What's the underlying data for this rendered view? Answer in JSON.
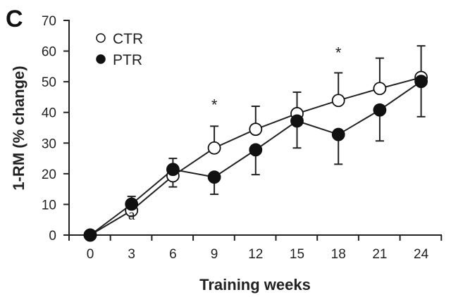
{
  "panel_label": "C",
  "chart_data": {
    "type": "line",
    "xlabel": "Training weeks",
    "ylabel": "1-RM (% change)",
    "x": [
      0,
      3,
      6,
      9,
      12,
      15,
      18,
      21,
      24
    ],
    "x_tick_labels": [
      "0",
      "3",
      "6",
      "9",
      "12",
      "15",
      "18",
      "21",
      "24"
    ],
    "ylim": [
      0,
      70
    ],
    "y_tick_labels": [
      "0",
      "10",
      "20",
      "30",
      "40",
      "50",
      "60",
      "70"
    ],
    "grid": false,
    "legend_position": "top-left",
    "series": [
      {
        "name": "CTR",
        "marker": "open-circle",
        "color": "#ffffff",
        "values": [
          0,
          8,
          19.3,
          28.4,
          34.5,
          39.6,
          43.9,
          47.8,
          51.4
        ],
        "error_upper": [
          null,
          null,
          null,
          35.5,
          42,
          46.6,
          52.9,
          57.7,
          61.7
        ],
        "error_lower": [
          null,
          null,
          15.7,
          null,
          null,
          null,
          null,
          null,
          null
        ]
      },
      {
        "name": "PTR",
        "marker": "filled-circle",
        "color": "#111111",
        "values": [
          0,
          10.1,
          21.4,
          18.9,
          27.8,
          37.2,
          32.8,
          40.8,
          50.1
        ],
        "error_upper": [
          null,
          12.6,
          25,
          null,
          null,
          null,
          null,
          null,
          null
        ],
        "error_lower": [
          null,
          null,
          null,
          13.3,
          19.7,
          28.4,
          23.1,
          30.7,
          38.6
        ]
      }
    ],
    "annotations": [
      {
        "text": "*",
        "x": 9,
        "y": 43
      },
      {
        "text": "*",
        "x": 18,
        "y": 60
      },
      {
        "text": "a",
        "x": 3,
        "y": 5
      }
    ]
  }
}
